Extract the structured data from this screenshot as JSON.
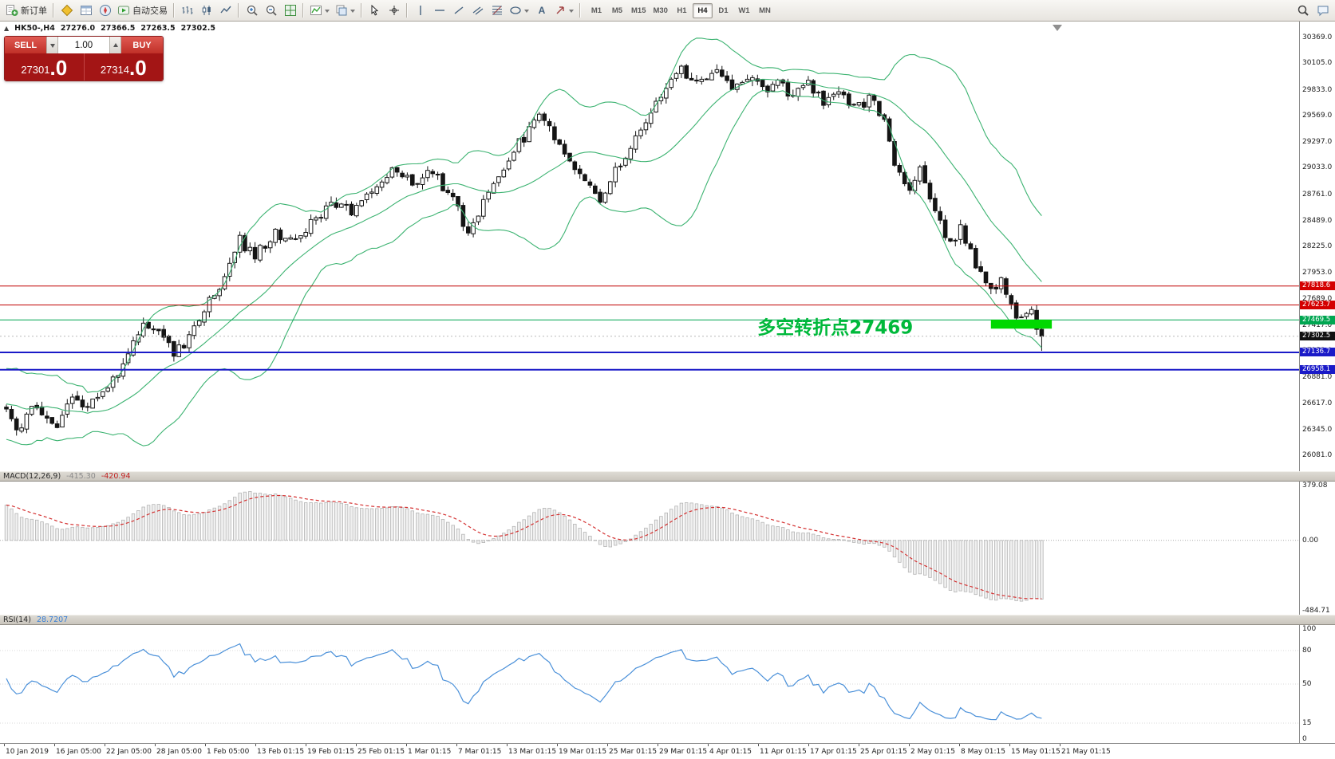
{
  "toolbar": {
    "new_order_label": "新订单",
    "autotrading_label": "自动交易",
    "buttons": [
      {
        "name": "new-order-button",
        "icon": "new-order-icon",
        "label": "新订单"
      },
      {
        "type": "separator"
      },
      {
        "name": "market-watch-button",
        "icon": "market-watch-icon"
      },
      {
        "name": "data-window-button",
        "icon": "data-window-icon"
      },
      {
        "name": "navigator-button",
        "icon": "navigator-icon"
      },
      {
        "name": "autotrading-button",
        "icon": "autotrading-icon",
        "label": "自动交易"
      },
      {
        "type": "separator"
      },
      {
        "name": "bar-chart-button",
        "icon": "bar-chart-icon"
      },
      {
        "name": "candlestick-chart-button",
        "icon": "candlestick-chart-icon"
      },
      {
        "name": "line-chart-button",
        "icon": "line-chart-icon"
      },
      {
        "type": "separator"
      },
      {
        "name": "zoom-in-button",
        "icon": "zoom-in-icon"
      },
      {
        "name": "zoom-out-button",
        "icon": "zoom-out-icon"
      },
      {
        "name": "tile-windows-button",
        "icon": "tile-windows-icon"
      },
      {
        "type": "separator"
      },
      {
        "name": "indicators-button",
        "icon": "indicators-icon",
        "caret": true
      },
      {
        "name": "templates-button",
        "icon": "templates-icon",
        "caret": true
      },
      {
        "type": "separator"
      },
      {
        "name": "cursor-button",
        "icon": "cursor-icon"
      },
      {
        "name": "crosshair-button",
        "icon": "crosshair-icon"
      },
      {
        "type": "separator"
      },
      {
        "name": "vertical-line-button",
        "icon": "vertical-line-icon"
      },
      {
        "name": "horizontal-line-button",
        "icon": "horizontal-line-icon"
      },
      {
        "name": "trendline-button",
        "icon": "trendline-icon"
      },
      {
        "name": "equidistant-channel-button",
        "icon": "channel-icon"
      },
      {
        "name": "fibonacci-button",
        "icon": "fibonacci-icon"
      },
      {
        "name": "shapes-button",
        "icon": "shapes-icon",
        "caret": true
      },
      {
        "name": "text-label-button",
        "icon": "text-label-icon"
      },
      {
        "name": "arrows-button",
        "icon": "arrows-icon",
        "caret": true
      },
      {
        "type": "separator"
      }
    ],
    "timeframes": [
      "M1",
      "M5",
      "M15",
      "M30",
      "H1",
      "H4",
      "D1",
      "W1",
      "MN"
    ],
    "active_timeframe": "H4",
    "right_buttons": [
      {
        "name": "search-button",
        "icon": "search-icon"
      },
      {
        "name": "chat-button",
        "icon": "chat-icon"
      }
    ]
  },
  "symbol_info": {
    "collapse_icon": "▲",
    "symbol": "HK50-,H4",
    "open": "27276.0",
    "high": "27366.5",
    "low": "27263.5",
    "close": "27302.5"
  },
  "trade_panel": {
    "sell_label": "SELL",
    "buy_label": "BUY",
    "volume": "1.00",
    "sell_price_main": "27301",
    "sell_price_big": ".0",
    "buy_price_main": "27314",
    "buy_price_big": ".0"
  },
  "macd_panel": {
    "label": "MACD(12,26,9)",
    "value_main": "-415.30",
    "value_signal": "-420.94",
    "axis": [
      379.08,
      0.0,
      -484.71
    ]
  },
  "rsi_panel": {
    "label": "RSI(14)",
    "value": "28.7207",
    "axis": [
      100,
      80,
      50,
      15,
      0
    ],
    "levels": [
      80,
      50,
      15
    ]
  },
  "chart_data": {
    "type": "candlestick",
    "symbol": "HK50-",
    "timeframe": "H4",
    "candle_count": 205,
    "last_price": 27302.5,
    "price_anchors": [
      [
        0,
        26580
      ],
      [
        2,
        26340
      ],
      [
        5,
        26560
      ],
      [
        8,
        26420
      ],
      [
        10,
        26380
      ],
      [
        13,
        26700
      ],
      [
        16,
        26550
      ],
      [
        19,
        26720
      ],
      [
        22,
        26880
      ],
      [
        25,
        27250
      ],
      [
        27,
        27480
      ],
      [
        30,
        27350
      ],
      [
        33,
        27120
      ],
      [
        36,
        27280
      ],
      [
        40,
        27650
      ],
      [
        43,
        27900
      ],
      [
        46,
        28280
      ],
      [
        49,
        28120
      ],
      [
        53,
        28350
      ],
      [
        57,
        28280
      ],
      [
        61,
        28500
      ],
      [
        65,
        28680
      ],
      [
        68,
        28560
      ],
      [
        72,
        28800
      ],
      [
        76,
        29000
      ],
      [
        80,
        28870
      ],
      [
        84,
        29000
      ],
      [
        88,
        28680
      ],
      [
        91,
        28380
      ],
      [
        94,
        28700
      ],
      [
        98,
        29050
      ],
      [
        102,
        29350
      ],
      [
        105,
        29580
      ],
      [
        109,
        29280
      ],
      [
        113,
        28950
      ],
      [
        117,
        28680
      ],
      [
        120,
        28980
      ],
      [
        123,
        29250
      ],
      [
        126,
        29550
      ],
      [
        129,
        29800
      ],
      [
        133,
        30050
      ],
      [
        136,
        29900
      ],
      [
        140,
        30080
      ],
      [
        143,
        29880
      ],
      [
        146,
        29980
      ],
      [
        149,
        29820
      ],
      [
        152,
        29920
      ],
      [
        155,
        29780
      ],
      [
        158,
        29880
      ],
      [
        161,
        29720
      ],
      [
        164,
        29820
      ],
      [
        167,
        29640
      ],
      [
        170,
        29740
      ],
      [
        173,
        29540
      ],
      [
        175,
        29000
      ],
      [
        178,
        28850
      ],
      [
        180,
        29060
      ],
      [
        183,
        28600
      ],
      [
        186,
        28260
      ],
      [
        188,
        28420
      ],
      [
        191,
        28000
      ],
      [
        194,
        27760
      ],
      [
        196,
        27870
      ],
      [
        198,
        27600
      ],
      [
        200,
        27440
      ],
      [
        202,
        27530
      ],
      [
        204,
        27302.5
      ]
    ],
    "price_axis_labels": [
      30369.0,
      30105.0,
      29833.0,
      29569.0,
      29297.0,
      29033.0,
      28761.0,
      28489.0,
      28225.0,
      27953.0,
      27689.0,
      27417.0,
      27153.0,
      26881.0,
      26617.0,
      26345.0,
      26081.0
    ],
    "levels": [
      {
        "price": 27818.6,
        "color": "#c00000",
        "width": 1
      },
      {
        "price": 27623.7,
        "color": "#c00000",
        "width": 1
      },
      {
        "price": 27469.5,
        "color": "#00a651",
        "width": 1
      },
      {
        "price": 27136.7,
        "color": "#1a1ac8",
        "width": 2
      },
      {
        "price": 26958.1,
        "color": "#1a1ac8",
        "width": 2
      }
    ],
    "price_markers": [
      {
        "price": 27818.6,
        "bg": "#d40000"
      },
      {
        "price": 27623.7,
        "bg": "#d40000"
      },
      {
        "price": 27469.5,
        "bg": "#00a651"
      },
      {
        "price": 27302.5,
        "bg": "#111111"
      },
      {
        "price": 27136.7,
        "bg": "#1a1ac8"
      },
      {
        "price": 26958.1,
        "bg": "#1a1ac8"
      }
    ],
    "annotation": {
      "text": "多空转折点27469",
      "color": "#00b93b",
      "price": 27330,
      "x_index": 148
    },
    "highlight_rect": {
      "x_index_start": 194,
      "x_index_end": 206,
      "price_top": 27472,
      "price_bottom": 27380,
      "color": "#00d800"
    },
    "bollinger": {
      "period": 20,
      "deviation": 2,
      "color": "#3cb371"
    },
    "macd": {
      "fast": 12,
      "slow": 26,
      "signal": 9,
      "histogram_color": "#efefef",
      "signal_color": "#d43030"
    },
    "rsi": {
      "period": 14,
      "color": "#4a90d9"
    },
    "time_labels": [
      "10 Jan 2019",
      "16 Jan 05:00",
      "22 Jan 05:00",
      "28 Jan 05:00",
      "1 Feb 05:00",
      "13 Feb 01:15",
      "19 Feb 01:15",
      "25 Feb 01:15",
      "1 Mar 01:15",
      "7 Mar 01:15",
      "13 Mar 01:15",
      "19 Mar 01:15",
      "25 Mar 01:15",
      "29 Mar 01:15",
      "4 Apr 01:15",
      "11 Apr 01:15",
      "17 Apr 01:15",
      "25 Apr 01:15",
      "2 May 01:15",
      "8 May 01:15",
      "15 May 01:15",
      "21 May 01:15"
    ]
  }
}
